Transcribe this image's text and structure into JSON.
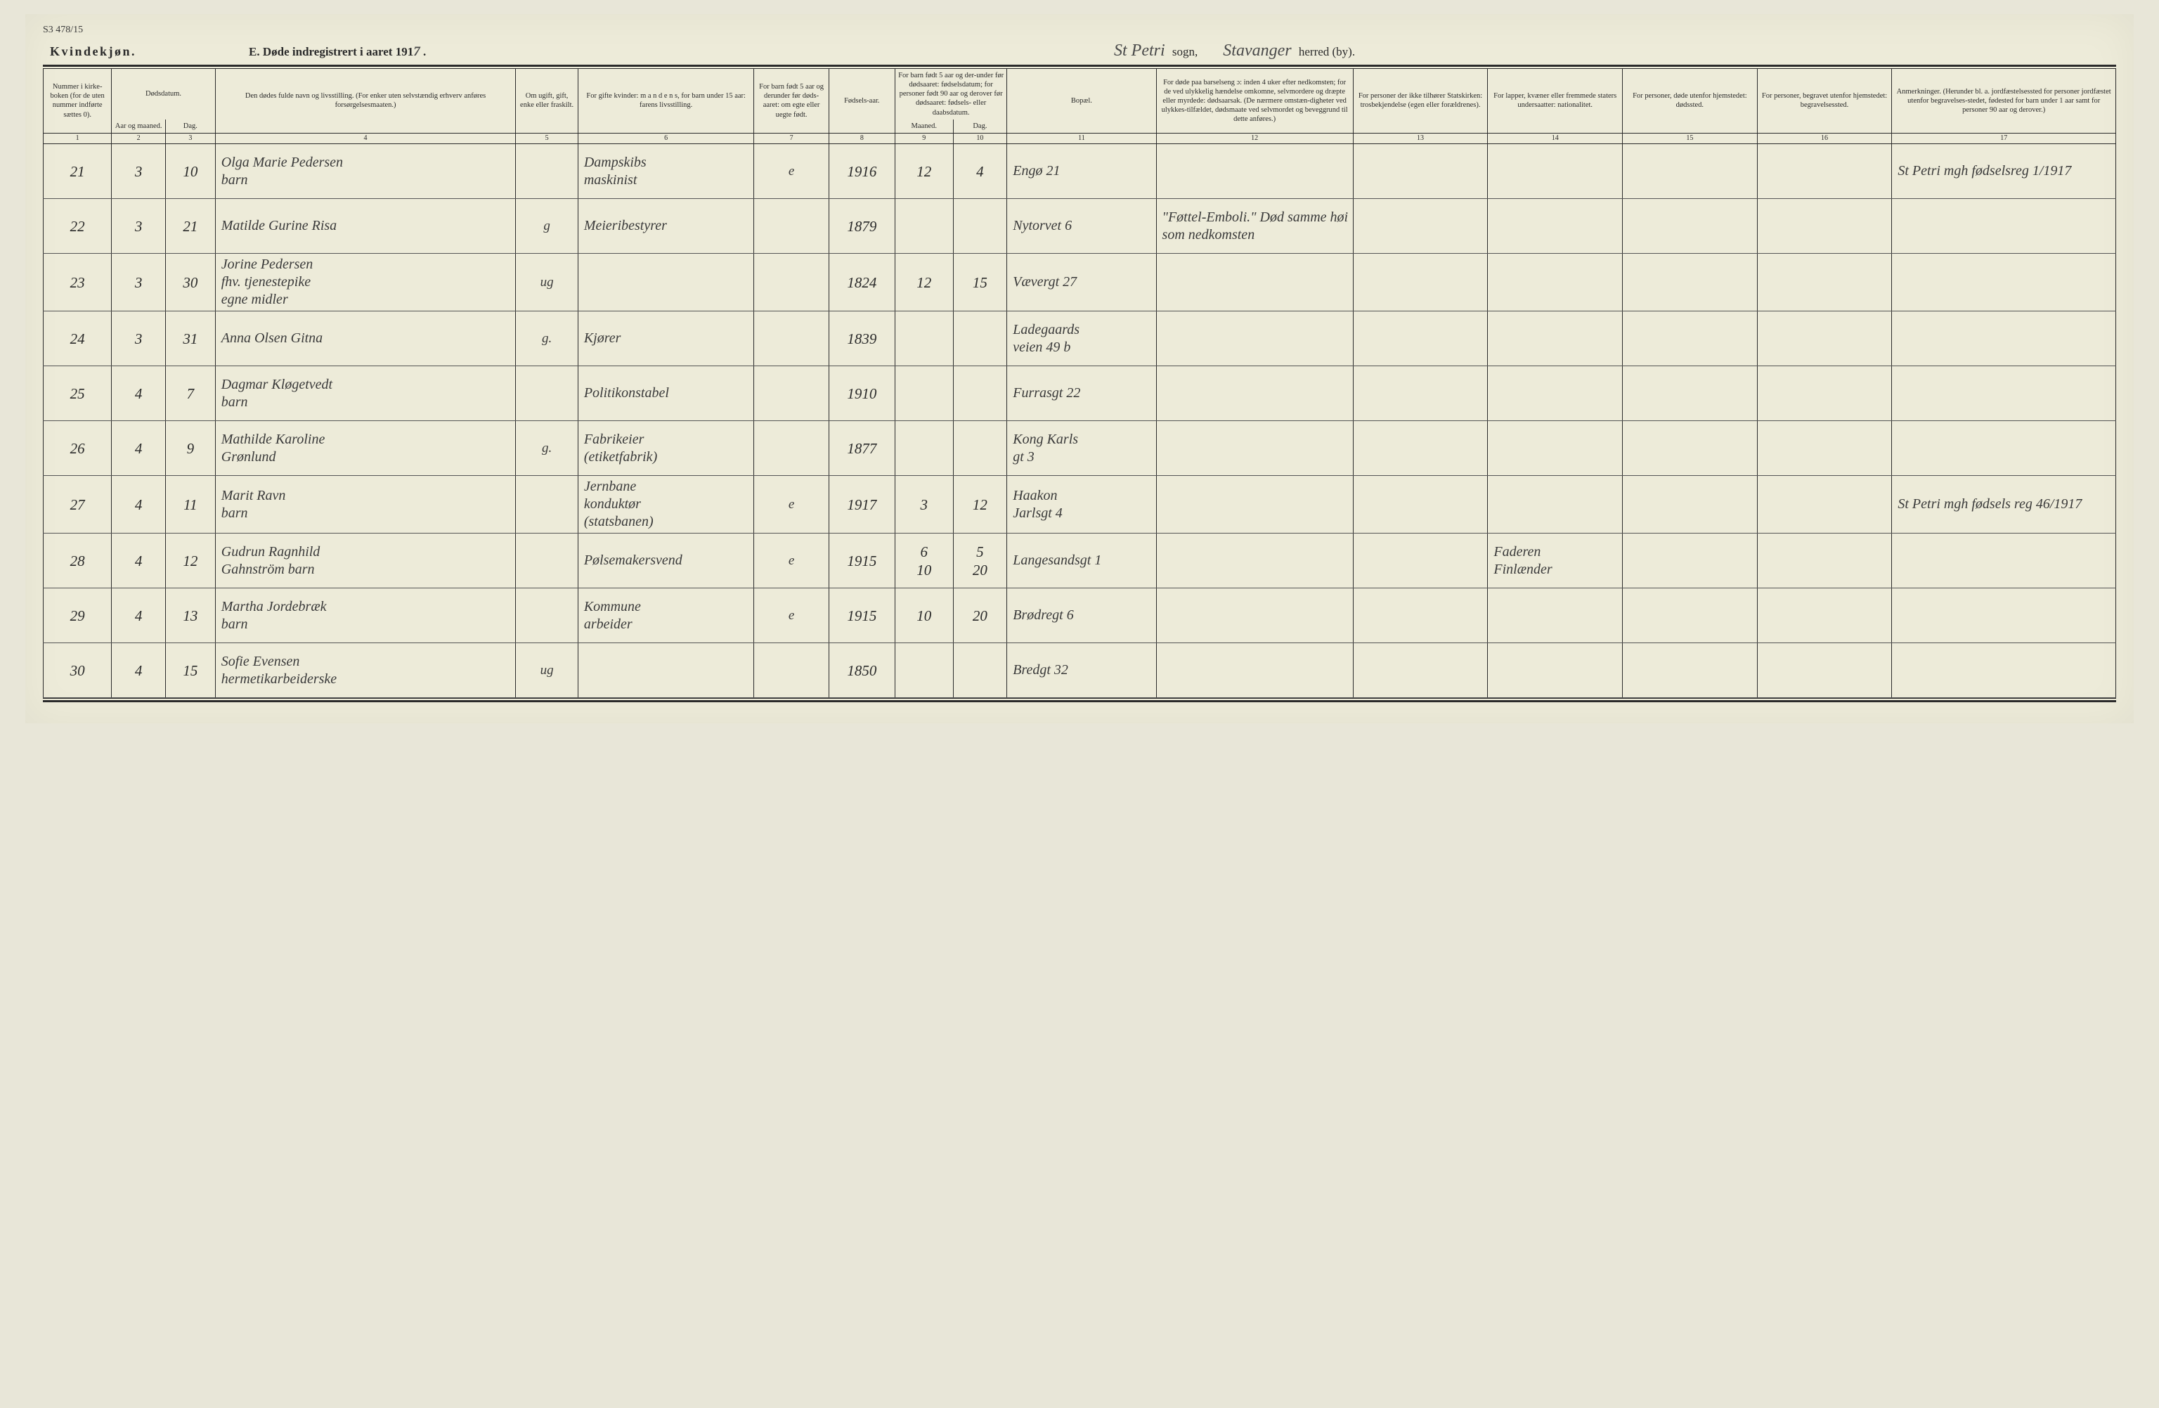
{
  "top_corner_note": "S3 478/15",
  "header": {
    "gender": "Kvindekjøn.",
    "title_prefix": "E.  Døde indregistrert i aaret 191",
    "title_year_suffix": "7",
    "title_period": ".",
    "parish_script": "St Petri",
    "parish_label": "sogn,",
    "district_script": "Stavanger",
    "district_label": "herred (by)."
  },
  "columns": {
    "c1": "Nummer i kirke-boken (for de uten nummer indførte sættes 0).",
    "c2_3": "Dødsdatum.",
    "c2": "Aar og maaned.",
    "c3": "Dag.",
    "c4": "Den dødes fulde navn og livsstilling.\n(For enker uten selvstændig erhverv anføres forsørgelsesmaaten.)",
    "c5": "Om ugift, gift, enke eller fraskilt.",
    "c6": "For gifte kvinder:\nm a n d e n s,\nfor barn under 15 aar:\nfarens livsstilling.",
    "c7": "For barn født 5 aar og derunder før døds-aaret: om egte eller uegte født.",
    "c8": "Fødsels-aar.",
    "c9_10": "For barn født 5 aar og der-under før dødsaaret: fødselsdatum; for personer født 90 aar og derover før dødsaaret: fødsels- eller daabsdatum.",
    "c9": "Maaned.",
    "c10": "Dag.",
    "c11": "Bopæl.",
    "c12": "For døde paa barselseng ɔ: inden 4 uker efter nedkomsten; for de ved ulykkelig hændelse omkomne, selvmordere og dræpte eller myrdede: dødsaarsak.\n(De nærmere omstæn-digheter ved ulykkes-tilfældet, dødsmaate ved selvmordet og beveggrund til dette anføres.)",
    "c13": "For personer der ikke tilhører Statskirken: trosbekjendelse (egen eller forældrenes).",
    "c14": "For lapper, kvæner eller fremmede staters undersaatter: nationalitet.",
    "c15": "For personer, døde utenfor hjemstedet: dødssted.",
    "c16": "For personer, begravet utenfor hjemstedet: begravelsessted.",
    "c17": "Anmerkninger.\n(Herunder bl. a. jordfæstelsessted for personer jordfæstet utenfor begravelses-stedet, fødested for barn under 1 aar samt for personer 90 aar og derover.)"
  },
  "colnums": [
    "1",
    "2",
    "3",
    "4",
    "5",
    "6",
    "7",
    "8",
    "9",
    "10",
    "11",
    "12",
    "13",
    "14",
    "15",
    "16",
    "17"
  ],
  "rows": [
    {
      "n": "21",
      "m": "3",
      "d": "10",
      "name": "Olga Marie Pedersen\nbarn",
      "civ": "",
      "occ": "Dampskibs\nmaskinist",
      "leg": "e",
      "year": "1916",
      "bm": "12",
      "bd": "4",
      "res": "Engø 21",
      "cause": "",
      "rel": "",
      "nat": "",
      "dpl": "",
      "bpl": "",
      "note": "St Petri mgh fødselsreg 1/1917"
    },
    {
      "n": "22",
      "m": "3",
      "d": "21",
      "name": "Matilde Gurine Risa",
      "civ": "g",
      "occ": "Meieribestyrer",
      "leg": "",
      "year": "1879",
      "bm": "",
      "bd": "",
      "res": "Nytorvet 6",
      "cause": "\"Føttel-Emboli.\" Død samme høi som nedkomsten",
      "rel": "",
      "nat": "",
      "dpl": "",
      "bpl": "",
      "note": ""
    },
    {
      "n": "23",
      "m": "3",
      "d": "30",
      "name": "Jorine Pedersen\nfhv. tjenestepike\negne midler",
      "civ": "ug",
      "occ": "",
      "leg": "",
      "year": "1824",
      "bm": "12",
      "bd": "15",
      "res": "Vævergt 27",
      "cause": "",
      "rel": "",
      "nat": "",
      "dpl": "",
      "bpl": "",
      "note": ""
    },
    {
      "n": "24",
      "m": "3",
      "d": "31",
      "name": "Anna Olsen Gitna",
      "civ": "g.",
      "occ": "Kjører",
      "leg": "",
      "year": "1839",
      "bm": "",
      "bd": "",
      "res": "Ladegaards\nveien 49 b",
      "cause": "",
      "rel": "",
      "nat": "",
      "dpl": "",
      "bpl": "",
      "note": ""
    },
    {
      "n": "25",
      "m": "4",
      "d": "7",
      "name": "Dagmar Kløgetvedt\nbarn",
      "civ": "",
      "occ": "Politikonstabel",
      "leg": "",
      "year": "1910",
      "bm": "",
      "bd": "",
      "res": "Furrasgt 22",
      "cause": "",
      "rel": "",
      "nat": "",
      "dpl": "",
      "bpl": "",
      "note": ""
    },
    {
      "n": "26",
      "m": "4",
      "d": "9",
      "name": "Mathilde Karoline\nGrønlund",
      "civ": "g.",
      "occ": "Fabrikeier\n(etiketfabrik)",
      "leg": "",
      "year": "1877",
      "bm": "",
      "bd": "",
      "res": "Kong Karls\ngt 3",
      "cause": "",
      "rel": "",
      "nat": "",
      "dpl": "",
      "bpl": "",
      "note": ""
    },
    {
      "n": "27",
      "m": "4",
      "d": "11",
      "name": "Marit Ravn\nbarn",
      "civ": "",
      "occ": "Jernbane\nkonduktør\n(statsbanen)",
      "leg": "e",
      "year": "1917",
      "bm": "3",
      "bd": "12",
      "res": "Haakon\nJarlsgt 4",
      "cause": "",
      "rel": "",
      "nat": "",
      "dpl": "",
      "bpl": "",
      "note": "St Petri mgh fødsels reg 46/1917"
    },
    {
      "n": "28",
      "m": "4",
      "d": "12",
      "name": "Gudrun Ragnhild\nGahnström    barn",
      "civ": "",
      "occ": "Pølsemakersvend",
      "leg": "e",
      "year": "1915",
      "bm": "6\n10",
      "bd": "5\n20",
      "res": "Langesandsgt 1",
      "cause": "",
      "rel": "",
      "nat": "Faderen\nFinlænder",
      "dpl": "",
      "bpl": "",
      "note": ""
    },
    {
      "n": "29",
      "m": "4",
      "d": "13",
      "name": "Martha Jordebræk\nbarn",
      "civ": "",
      "occ": "Kommune\narbeider",
      "leg": "e",
      "year": "1915",
      "bm": "10",
      "bd": "20",
      "res": "Brødregt 6",
      "cause": "",
      "rel": "",
      "nat": "",
      "dpl": "",
      "bpl": "",
      "note": ""
    },
    {
      "n": "30",
      "m": "4",
      "d": "15",
      "name": "Sofie Evensen\nhermetikarbeiderske",
      "civ": "ug",
      "occ": "",
      "leg": "",
      "year": "1850",
      "bm": "",
      "bd": "",
      "res": "Bredgt 32",
      "cause": "",
      "rel": "",
      "nat": "",
      "dpl": "",
      "bpl": "",
      "note": ""
    }
  ],
  "colwidths_pct": [
    3.3,
    2.6,
    2.4,
    14.5,
    3.0,
    8.5,
    3.6,
    3.2,
    2.8,
    2.6,
    7.2,
    9.5,
    6.5,
    6.5,
    6.5,
    6.5,
    10.8
  ]
}
